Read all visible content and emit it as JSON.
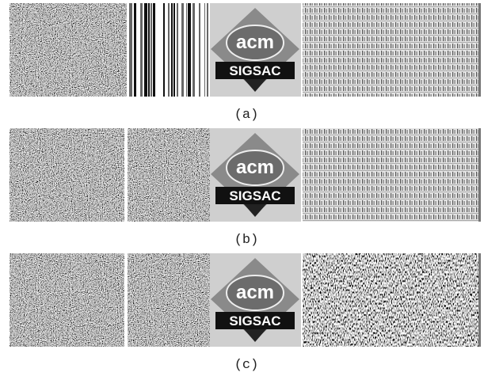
{
  "figure": {
    "rows": [
      {
        "caption": "(a)",
        "logo": {
          "brand": "acm",
          "name": "SIGSAC"
        }
      },
      {
        "caption": "(b)",
        "logo": {
          "brand": "acm",
          "name": "SIGSAC"
        }
      },
      {
        "caption": "(c)",
        "logo": {
          "brand": "acm",
          "name": "SIGSAC"
        }
      }
    ]
  }
}
